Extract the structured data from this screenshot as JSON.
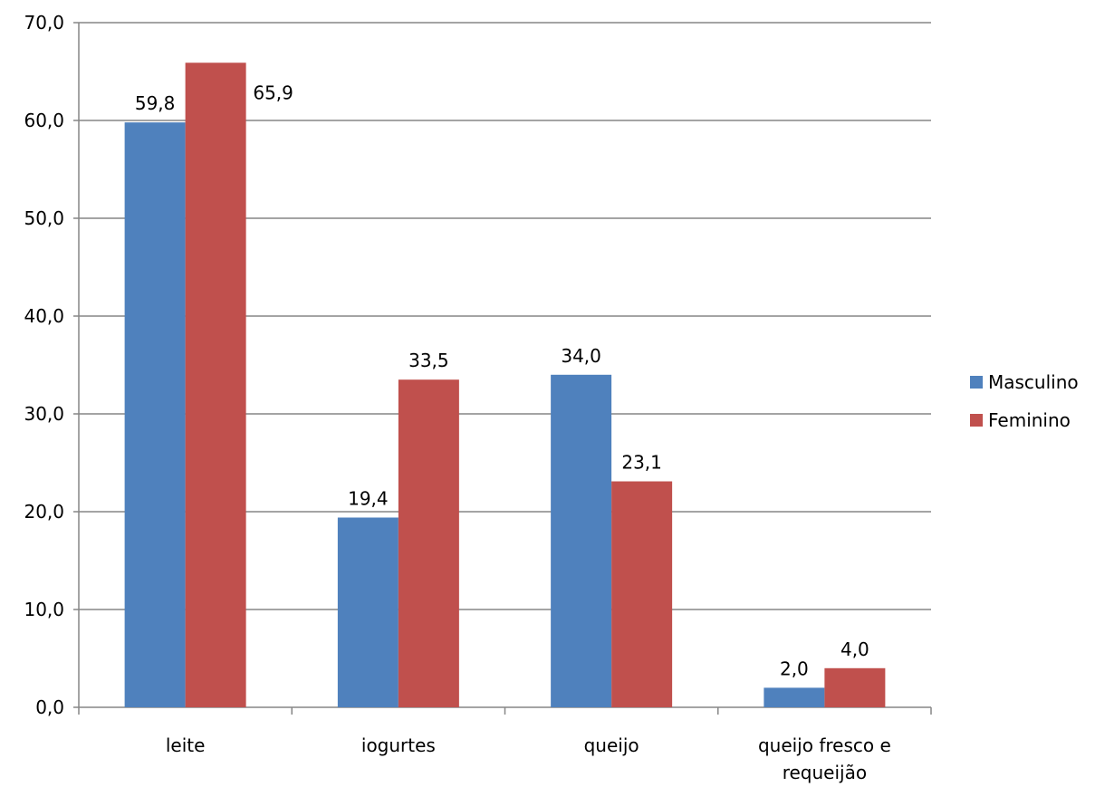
{
  "chart_data": {
    "type": "bar",
    "categories": [
      [
        "leite"
      ],
      [
        "iogurtes"
      ],
      [
        "queijo"
      ],
      [
        "queijo fresco e",
        "requeijão"
      ]
    ],
    "series": [
      {
        "name": "Masculino",
        "values": [
          59.8,
          19.4,
          34.0,
          2.0
        ],
        "labels": [
          "59,8",
          "19,4",
          "34,0",
          "2,0"
        ],
        "color": "#4F81BD"
      },
      {
        "name": "Feminino",
        "values": [
          65.9,
          33.5,
          23.1,
          4.0
        ],
        "labels": [
          "65,9",
          "33,5",
          "23,1",
          "4,0"
        ],
        "color": "#C0504D"
      }
    ],
    "ylim": [
      0,
      70
    ],
    "yticks": [
      0,
      10,
      20,
      30,
      40,
      50,
      60,
      70
    ],
    "ytick_labels": [
      "0,0",
      "10,0",
      "20,0",
      "30,0",
      "40,0",
      "50,0",
      "60,0",
      "70,0"
    ],
    "grid": true,
    "legend_position": "right"
  }
}
